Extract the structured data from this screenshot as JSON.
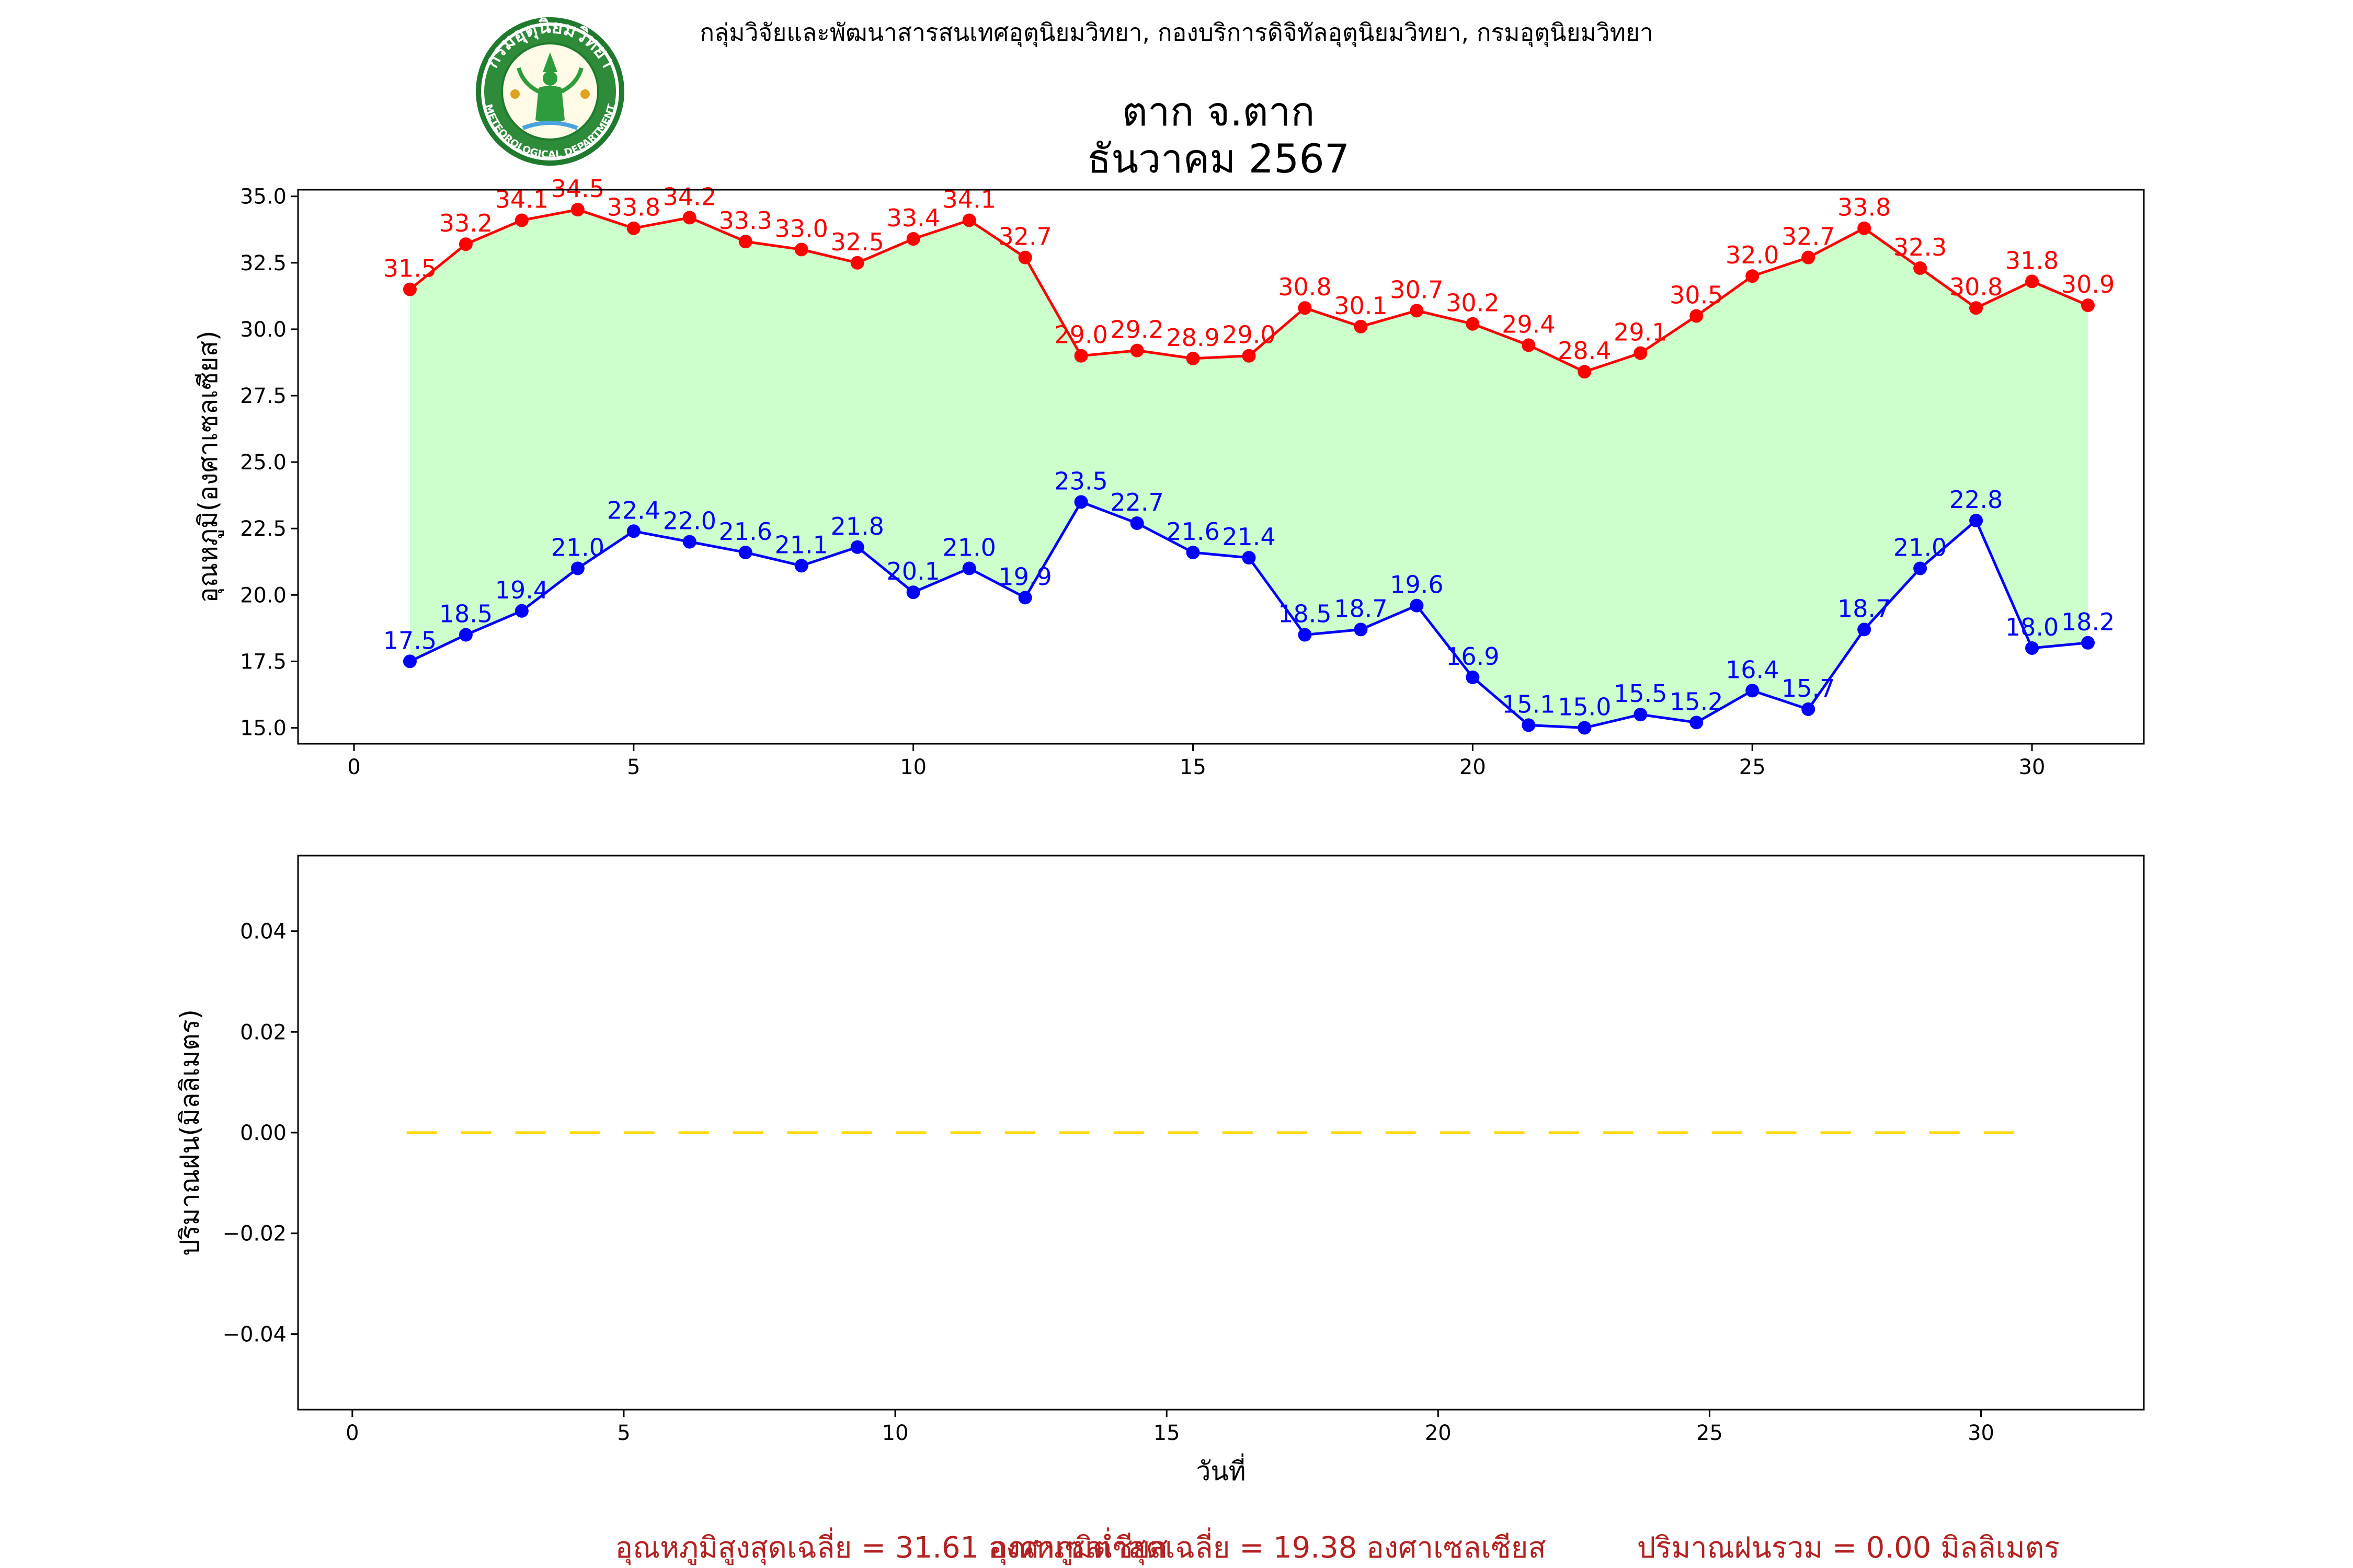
{
  "header": {
    "agency": "กลุ่มวิจัยและพัฒนาสารสนเทศอุตุนิยมวิทยา, กองบริการดิจิทัลอุตุนิยมวิทยา, กรมอุตุนิยมวิทยา",
    "logo_top": "กรมอุตุนิยมวิทยา",
    "logo_bottom": "METEOROLOGICAL DEPARTMENT",
    "station": "ตาก จ.ตาก",
    "period": "ธันวาคม 2567"
  },
  "colors": {
    "max_line": "#ff0000",
    "min_line": "#0000ff",
    "fill": "#ccffcc",
    "rain_line": "#ffd700",
    "agency_text": "#0000ff",
    "footer_text": "#b22222"
  },
  "chart_data": [
    {
      "type": "line",
      "ylabel": "อุณหภูมิ(องศาเซลเซียส)",
      "xlabel": "",
      "x": [
        1,
        2,
        3,
        4,
        5,
        6,
        7,
        8,
        9,
        10,
        11,
        12,
        13,
        14,
        15,
        16,
        17,
        18,
        19,
        20,
        21,
        22,
        23,
        24,
        25,
        26,
        27,
        28,
        29,
        30,
        31
      ],
      "xlim": [
        -1,
        32
      ],
      "ylim": [
        14.4,
        35.25
      ],
      "xticks": [
        0,
        5,
        10,
        15,
        20,
        25,
        30
      ],
      "yticks": [
        "15.0",
        "17.5",
        "20.0",
        "22.5",
        "25.0",
        "27.5",
        "30.0",
        "32.5",
        "35.0"
      ],
      "fill_between": true,
      "grid": false,
      "series": [
        {
          "values": [
            31.5,
            33.2,
            34.1,
            34.5,
            33.8,
            34.2,
            33.3,
            33.0,
            32.5,
            33.4,
            34.1,
            32.7,
            29.0,
            29.2,
            28.9,
            29.0,
            30.8,
            30.1,
            30.7,
            30.2,
            29.4,
            28.4,
            29.1,
            30.5,
            32.0,
            32.7,
            33.8,
            32.3,
            30.8,
            31.8,
            30.9
          ]
        },
        {
          "values": [
            17.5,
            18.5,
            19.4,
            21.0,
            22.4,
            22.0,
            21.6,
            21.1,
            21.8,
            20.1,
            21.0,
            19.9,
            23.5,
            22.7,
            21.6,
            21.4,
            18.5,
            18.7,
            19.6,
            16.9,
            15.1,
            15.0,
            15.5,
            15.2,
            16.4,
            15.7,
            18.7,
            21.0,
            22.8,
            18.0,
            18.2
          ]
        }
      ]
    },
    {
      "type": "line",
      "ylabel": "ปริมาณฝน(มิลลิเมตร)",
      "xlabel": "วันที่",
      "x": [
        1,
        2,
        3,
        4,
        5,
        6,
        7,
        8,
        9,
        10,
        11,
        12,
        13,
        14,
        15,
        16,
        17,
        18,
        19,
        20,
        21,
        22,
        23,
        24,
        25,
        26,
        27,
        28,
        29,
        30,
        31
      ],
      "xlim": [
        -1,
        33
      ],
      "ylim": [
        -0.055,
        0.055
      ],
      "xticks": [
        0,
        5,
        10,
        15,
        20,
        25,
        30
      ],
      "yticks": [
        "−0.04",
        "−0.02",
        "0.00",
        "0.02",
        "0.04"
      ],
      "grid": false,
      "series": [
        {
          "values": [
            0,
            0,
            0,
            0,
            0,
            0,
            0,
            0,
            0,
            0,
            0,
            0,
            0,
            0,
            0,
            0,
            0,
            0,
            0,
            0,
            0,
            0,
            0,
            0,
            0,
            0,
            0,
            0,
            0,
            0,
            0
          ],
          "line_style": "dashed"
        }
      ]
    }
  ],
  "footer": {
    "avg_max": "อุณหภูมิสูงสุดเฉลี่ย = 31.61 องศาเซลเซียส",
    "avg_min": "อุณหภูมิต่ำสุดเฉลี่ย = 19.38 องศาเซลเซียส",
    "rain_total": "ปริมาณฝนรวม = 0.00 มิลลิเมตร"
  }
}
